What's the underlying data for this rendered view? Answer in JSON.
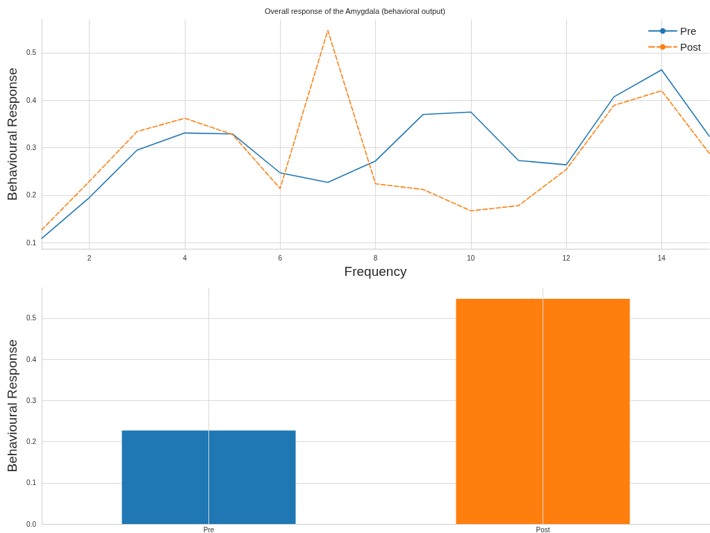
{
  "chart_data": [
    {
      "type": "line",
      "title": "Overall response of the Amygdala (behavioral output)",
      "xlabel": "Frequency",
      "ylabel": "Behavioural Response",
      "x": [
        1,
        2,
        3,
        4,
        5,
        6,
        7,
        8,
        9,
        10,
        11,
        12,
        13,
        14,
        15
      ],
      "series": [
        {
          "name": "Pre",
          "color": "#1f77b4",
          "line_style": "solid",
          "values": [
            0.109,
            0.195,
            0.295,
            0.331,
            0.329,
            0.247,
            0.227,
            0.272,
            0.37,
            0.375,
            0.273,
            0.264,
            0.407,
            0.464,
            0.324
          ]
        },
        {
          "name": "Post",
          "color": "#ff7f0e",
          "line_style": "dashed",
          "values": [
            0.127,
            0.229,
            0.334,
            0.362,
            0.328,
            0.214,
            0.547,
            0.224,
            0.212,
            0.167,
            0.178,
            0.254,
            0.389,
            0.42,
            0.288
          ]
        }
      ],
      "xlim": [
        1,
        15
      ],
      "xticks": [
        2,
        4,
        6,
        8,
        10,
        12,
        14
      ],
      "ylim": [
        0.087,
        0.57
      ],
      "yticks": [
        0.1,
        0.2,
        0.3,
        0.4,
        0.5
      ],
      "grid": true,
      "legend": "top right"
    },
    {
      "type": "bar",
      "ylabel": "Behavioural Response",
      "categories": [
        "Pre",
        "Post"
      ],
      "values": [
        0.227,
        0.547
      ],
      "colors": [
        "#1f77b4",
        "#ff7f0e"
      ],
      "ylim": [
        0,
        0.574
      ],
      "yticks": [
        {
          "value": 0,
          "label": "0.0"
        },
        0.1,
        0.2,
        0.3,
        0.4,
        0.5
      ],
      "grid": true
    }
  ]
}
